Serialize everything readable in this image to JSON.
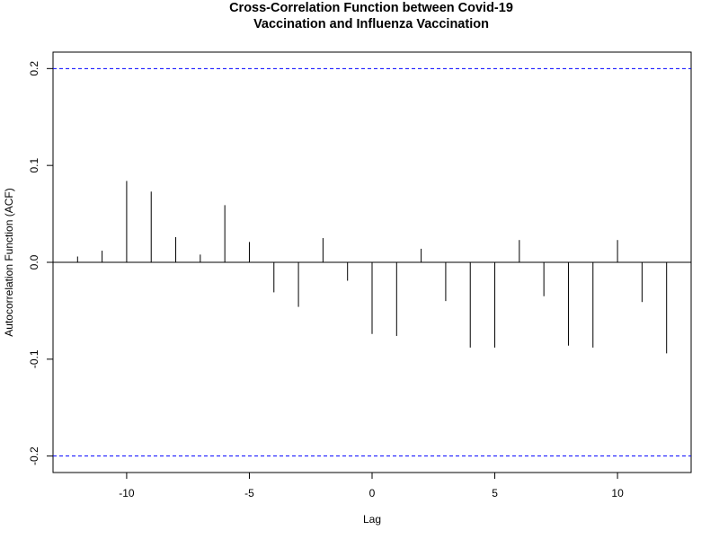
{
  "chart_data": {
    "type": "bar",
    "title_lines": [
      "Cross-Correlation Function between Covid-19",
      "Vaccination and Influenza Vaccination"
    ],
    "xlabel": "Lag",
    "ylabel": "Autocorrelation Function (ACF)",
    "xlim": [
      -13,
      13
    ],
    "ylim": [
      -0.217,
      0.217
    ],
    "x_ticks": [
      -10,
      -5,
      0,
      5,
      10
    ],
    "x_tick_labels": [
      "-10",
      "-5",
      "0",
      "5",
      "10"
    ],
    "y_ticks": [
      -0.2,
      -0.1,
      0.0,
      0.1,
      0.2
    ],
    "y_tick_labels": [
      "-0.2",
      "-0.1",
      "0.0",
      "0.1",
      "0.2"
    ],
    "lags": [
      -12,
      -11,
      -10,
      -9,
      -8,
      -7,
      -6,
      -5,
      -4,
      -3,
      -2,
      -1,
      0,
      1,
      2,
      3,
      4,
      5,
      6,
      7,
      8,
      9,
      10,
      11,
      12
    ],
    "values": [
      0.006,
      0.012,
      0.084,
      0.073,
      0.026,
      0.008,
      0.059,
      0.021,
      -0.031,
      -0.046,
      0.025,
      -0.019,
      -0.074,
      -0.076,
      0.014,
      -0.04,
      -0.088,
      -0.088,
      0.023,
      -0.035,
      -0.086,
      -0.088,
      0.023,
      -0.041,
      -0.094
    ],
    "confidence_bounds": [
      0.2,
      -0.2
    ],
    "bound_color": "#0000ff",
    "bar_color": "#000000",
    "grid": false,
    "legend": "none"
  }
}
